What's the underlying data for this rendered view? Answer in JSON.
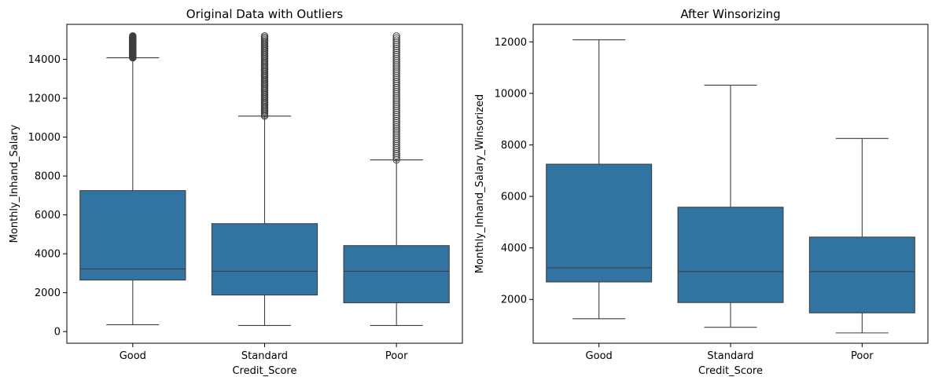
{
  "chart_data": [
    {
      "type": "boxplot",
      "title": "Original Data with Outliers",
      "xlabel": "Credit_Score",
      "ylabel": "Monthly_Inhand_Salary",
      "ylim": [
        -600,
        15800
      ],
      "yticks": [
        0,
        2000,
        4000,
        6000,
        8000,
        10000,
        12000,
        14000
      ],
      "ytick_labels": [
        "0",
        "2000",
        "4000",
        "6000",
        "8000",
        "10000",
        "12000",
        "14000"
      ],
      "categories": [
        "Good",
        "Standard",
        "Poor"
      ],
      "box_color": "#3274a1",
      "boxes": [
        {
          "category": "Good",
          "whisker_low": 350,
          "q1": 2650,
          "median": 3220,
          "q3": 7250,
          "whisker_high": 14080,
          "outliers_from": 14080,
          "outliers_to": 15200
        },
        {
          "category": "Standard",
          "whisker_low": 310,
          "q1": 1880,
          "median": 3100,
          "q3": 5550,
          "whisker_high": 11080,
          "outliers_from": 11080,
          "outliers_to": 15200
        },
        {
          "category": "Poor",
          "whisker_low": 310,
          "q1": 1480,
          "median": 3100,
          "q3": 4420,
          "whisker_high": 8830,
          "outliers_from": 8830,
          "outliers_to": 15200
        }
      ]
    },
    {
      "type": "boxplot",
      "title": "After Winsorizing",
      "xlabel": "Credit_Score",
      "ylabel": "Monthly_Inhand_Salary_Winsorized",
      "ylim": [
        300,
        12680
      ],
      "yticks": [
        2000,
        4000,
        6000,
        8000,
        10000,
        12000
      ],
      "ytick_labels": [
        "2000",
        "4000",
        "6000",
        "8000",
        "10000",
        "12000"
      ],
      "categories": [
        "Good",
        "Standard",
        "Poor"
      ],
      "box_color": "#3274a1",
      "boxes": [
        {
          "category": "Good",
          "whisker_low": 1250,
          "q1": 2680,
          "median": 3230,
          "q3": 7250,
          "whisker_high": 12080
        },
        {
          "category": "Standard",
          "whisker_low": 920,
          "q1": 1880,
          "median": 3080,
          "q3": 5580,
          "whisker_high": 10320
        },
        {
          "category": "Poor",
          "whisker_low": 700,
          "q1": 1480,
          "median": 3080,
          "q3": 4420,
          "whisker_high": 8250
        }
      ]
    }
  ]
}
